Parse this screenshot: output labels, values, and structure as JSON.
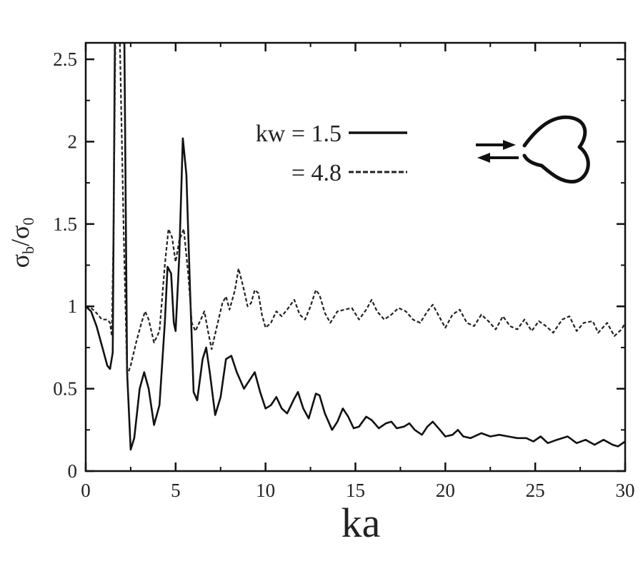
{
  "chart_data": {
    "type": "line",
    "title": "",
    "xlabel": "ka",
    "ylabel": {
      "parts": [
        {
          "text": "σ",
          "sub": "b"
        },
        {
          "text": "/"
        },
        {
          "text": "σ",
          "sub": "0"
        }
      ]
    },
    "xlim": [
      0,
      30
    ],
    "ylim": [
      0,
      2.6
    ],
    "xticks": [
      "0",
      "5",
      "10",
      "15",
      "20",
      "25",
      "30"
    ],
    "yticks": [
      "0",
      "0.5",
      "1",
      "1.5",
      "2",
      "2.5"
    ],
    "grid": false,
    "legend_position": "top-center",
    "series": [
      {
        "label": "kw = 1.5",
        "style": "solid",
        "color": "#111111",
        "points": [
          [
            0,
            1.0
          ],
          [
            0.3,
            0.97
          ],
          [
            0.6,
            0.88
          ],
          [
            0.9,
            0.76
          ],
          [
            1.2,
            0.64
          ],
          [
            1.35,
            0.62
          ],
          [
            1.5,
            0.72
          ],
          [
            1.62,
            2.6
          ],
          [
            2.15,
            2.6
          ],
          [
            2.3,
            0.6
          ],
          [
            2.5,
            0.13
          ],
          [
            2.7,
            0.2
          ],
          [
            3.0,
            0.5
          ],
          [
            3.25,
            0.6
          ],
          [
            3.5,
            0.5
          ],
          [
            3.8,
            0.28
          ],
          [
            4.1,
            0.4
          ],
          [
            4.4,
            0.9
          ],
          [
            4.55,
            1.24
          ],
          [
            4.75,
            1.2
          ],
          [
            4.9,
            0.9
          ],
          [
            5.0,
            0.85
          ],
          [
            5.2,
            1.3
          ],
          [
            5.4,
            2.02
          ],
          [
            5.6,
            1.8
          ],
          [
            5.8,
            1.1
          ],
          [
            6.0,
            0.48
          ],
          [
            6.2,
            0.43
          ],
          [
            6.5,
            0.68
          ],
          [
            6.7,
            0.75
          ],
          [
            6.9,
            0.6
          ],
          [
            7.2,
            0.34
          ],
          [
            7.5,
            0.45
          ],
          [
            7.8,
            0.68
          ],
          [
            8.1,
            0.7
          ],
          [
            8.4,
            0.6
          ],
          [
            8.8,
            0.5
          ],
          [
            9.1,
            0.55
          ],
          [
            9.4,
            0.6
          ],
          [
            9.7,
            0.48
          ],
          [
            10.0,
            0.38
          ],
          [
            10.3,
            0.4
          ],
          [
            10.6,
            0.45
          ],
          [
            10.9,
            0.38
          ],
          [
            11.2,
            0.35
          ],
          [
            11.6,
            0.44
          ],
          [
            11.8,
            0.48
          ],
          [
            12.1,
            0.38
          ],
          [
            12.4,
            0.32
          ],
          [
            12.8,
            0.47
          ],
          [
            13.0,
            0.46
          ],
          [
            13.3,
            0.35
          ],
          [
            13.7,
            0.25
          ],
          [
            14.0,
            0.3
          ],
          [
            14.3,
            0.38
          ],
          [
            14.6,
            0.33
          ],
          [
            14.9,
            0.26
          ],
          [
            15.2,
            0.27
          ],
          [
            15.6,
            0.33
          ],
          [
            15.9,
            0.31
          ],
          [
            16.3,
            0.26
          ],
          [
            16.7,
            0.29
          ],
          [
            17.0,
            0.3
          ],
          [
            17.3,
            0.26
          ],
          [
            17.7,
            0.27
          ],
          [
            18.0,
            0.29
          ],
          [
            18.3,
            0.25
          ],
          [
            18.7,
            0.22
          ],
          [
            19.0,
            0.27
          ],
          [
            19.3,
            0.3
          ],
          [
            19.7,
            0.25
          ],
          [
            20.0,
            0.21
          ],
          [
            20.4,
            0.22
          ],
          [
            20.7,
            0.25
          ],
          [
            21.0,
            0.21
          ],
          [
            21.4,
            0.2
          ],
          [
            22.0,
            0.23
          ],
          [
            22.5,
            0.21
          ],
          [
            23.0,
            0.22
          ],
          [
            23.5,
            0.21
          ],
          [
            24.0,
            0.2
          ],
          [
            24.5,
            0.2
          ],
          [
            24.9,
            0.18
          ],
          [
            25.3,
            0.21
          ],
          [
            25.7,
            0.17
          ],
          [
            26.2,
            0.19
          ],
          [
            26.8,
            0.21
          ],
          [
            27.3,
            0.17
          ],
          [
            27.8,
            0.19
          ],
          [
            28.3,
            0.16
          ],
          [
            28.8,
            0.19
          ],
          [
            29.3,
            0.16
          ],
          [
            29.6,
            0.15
          ],
          [
            30.0,
            0.18
          ]
        ]
      },
      {
        "label": "= 4.8",
        "style": "dashed",
        "color": "#222222",
        "points": [
          [
            0,
            1.0
          ],
          [
            0.3,
            0.99
          ],
          [
            0.6,
            0.96
          ],
          [
            0.9,
            0.92
          ],
          [
            1.2,
            0.92
          ],
          [
            1.35,
            0.9
          ],
          [
            1.45,
            0.82
          ],
          [
            1.55,
            1.5
          ],
          [
            1.65,
            2.6
          ],
          [
            1.9,
            2.6
          ],
          [
            2.1,
            1.5
          ],
          [
            2.3,
            0.58
          ],
          [
            2.5,
            0.64
          ],
          [
            2.8,
            0.78
          ],
          [
            3.1,
            0.9
          ],
          [
            3.3,
            0.97
          ],
          [
            3.5,
            0.92
          ],
          [
            3.8,
            0.78
          ],
          [
            4.1,
            0.85
          ],
          [
            4.4,
            1.25
          ],
          [
            4.6,
            1.47
          ],
          [
            4.8,
            1.42
          ],
          [
            5.0,
            1.27
          ],
          [
            5.2,
            1.4
          ],
          [
            5.45,
            1.47
          ],
          [
            5.7,
            1.2
          ],
          [
            5.9,
            0.9
          ],
          [
            6.1,
            0.85
          ],
          [
            6.4,
            0.92
          ],
          [
            6.6,
            0.97
          ],
          [
            6.8,
            0.85
          ],
          [
            7.0,
            0.74
          ],
          [
            7.3,
            0.88
          ],
          [
            7.6,
            1.02
          ],
          [
            7.8,
            1.06
          ],
          [
            8.0,
            0.98
          ],
          [
            8.3,
            1.1
          ],
          [
            8.5,
            1.23
          ],
          [
            8.8,
            1.1
          ],
          [
            9.0,
            1.0
          ],
          [
            9.2,
            1.02
          ],
          [
            9.4,
            1.1
          ],
          [
            9.6,
            1.08
          ],
          [
            9.8,
            0.95
          ],
          [
            10.0,
            0.87
          ],
          [
            10.3,
            0.9
          ],
          [
            10.6,
            0.97
          ],
          [
            10.9,
            0.94
          ],
          [
            11.2,
            0.98
          ],
          [
            11.6,
            1.04
          ],
          [
            11.9,
            0.95
          ],
          [
            12.2,
            0.92
          ],
          [
            12.5,
            1.0
          ],
          [
            12.8,
            1.1
          ],
          [
            13.0,
            1.07
          ],
          [
            13.3,
            0.96
          ],
          [
            13.6,
            0.9
          ],
          [
            14.0,
            0.97
          ],
          [
            14.4,
            0.98
          ],
          [
            14.8,
            0.99
          ],
          [
            15.2,
            0.92
          ],
          [
            15.6,
            0.98
          ],
          [
            15.9,
            1.04
          ],
          [
            16.2,
            0.97
          ],
          [
            16.6,
            0.92
          ],
          [
            17.0,
            0.95
          ],
          [
            17.4,
            0.99
          ],
          [
            17.8,
            0.97
          ],
          [
            18.2,
            0.92
          ],
          [
            18.6,
            0.9
          ],
          [
            19.0,
            0.97
          ],
          [
            19.3,
            1.01
          ],
          [
            19.6,
            0.95
          ],
          [
            20.0,
            0.87
          ],
          [
            20.4,
            0.95
          ],
          [
            20.8,
            0.98
          ],
          [
            21.2,
            0.9
          ],
          [
            21.6,
            0.88
          ],
          [
            22.0,
            0.95
          ],
          [
            22.4,
            0.91
          ],
          [
            22.8,
            0.86
          ],
          [
            23.2,
            0.94
          ],
          [
            23.6,
            0.88
          ],
          [
            24.0,
            0.86
          ],
          [
            24.4,
            0.92
          ],
          [
            24.8,
            0.85
          ],
          [
            25.2,
            0.91
          ],
          [
            25.6,
            0.88
          ],
          [
            26.0,
            0.84
          ],
          [
            26.5,
            0.92
          ],
          [
            26.9,
            0.94
          ],
          [
            27.3,
            0.85
          ],
          [
            27.7,
            0.9
          ],
          [
            28.2,
            0.91
          ],
          [
            28.5,
            0.84
          ],
          [
            29.0,
            0.9
          ],
          [
            29.4,
            0.82
          ],
          [
            29.8,
            0.86
          ],
          [
            30.0,
            0.9
          ]
        ]
      }
    ],
    "inset": {
      "icon": "trefoil-scatterer-icon",
      "description_icons": [
        "incident-arrow-icon",
        "backscatter-arrow-icon"
      ]
    }
  }
}
